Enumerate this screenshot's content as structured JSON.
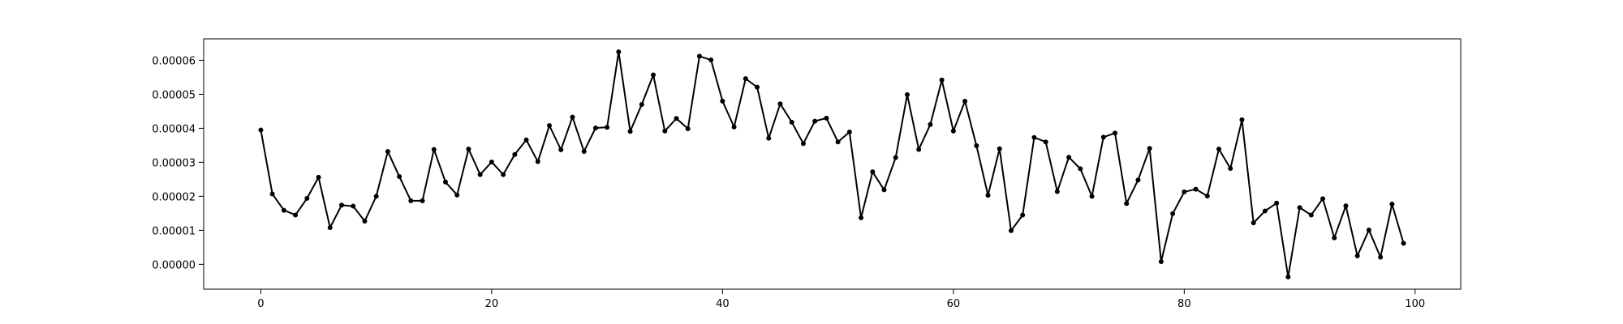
{
  "chart_data": {
    "type": "line",
    "title": "",
    "xlabel": "",
    "ylabel": "",
    "xlim": [
      -4.95,
      103.95
    ],
    "ylim": [
      -7.3e-06,
      6.63e-05
    ],
    "grid": false,
    "legend": "none",
    "x_ticks": [
      0,
      20,
      40,
      60,
      80,
      100
    ],
    "x_tick_labels": [
      "0",
      "20",
      "40",
      "60",
      "80",
      "100"
    ],
    "y_ticks": [
      0,
      1e-05,
      2e-05,
      3e-05,
      4e-05,
      5e-05,
      6e-05
    ],
    "y_tick_labels": [
      "0.00000",
      "0.00001",
      "0.00002",
      "0.00003",
      "0.00004",
      "0.00005",
      "0.00006"
    ],
    "series": [
      {
        "color": "#000000",
        "marker": "circle",
        "x": [
          0,
          1,
          2,
          3,
          4,
          5,
          6,
          7,
          8,
          9,
          10,
          11,
          12,
          13,
          14,
          15,
          16,
          17,
          18,
          19,
          20,
          21,
          22,
          23,
          24,
          25,
          26,
          27,
          28,
          29,
          30,
          31,
          32,
          33,
          34,
          35,
          36,
          37,
          38,
          39,
          40,
          41,
          42,
          43,
          44,
          45,
          46,
          47,
          48,
          49,
          50,
          51,
          52,
          53,
          54,
          55,
          56,
          57,
          58,
          59,
          60,
          61,
          62,
          63,
          64,
          65,
          66,
          67,
          68,
          69,
          70,
          71,
          72,
          73,
          74,
          75,
          76,
          77,
          78,
          79,
          80,
          81,
          82,
          83,
          84,
          85,
          86,
          87,
          88,
          89,
          90,
          91,
          92,
          93,
          94,
          95,
          96,
          97,
          98,
          99
        ],
        "values": [
          3.95e-05,
          2.07e-05,
          1.59e-05,
          1.45e-05,
          1.94e-05,
          2.56e-05,
          1.08e-05,
          1.74e-05,
          1.71e-05,
          1.27e-05,
          2e-05,
          3.32e-05,
          2.58e-05,
          1.87e-05,
          1.87e-05,
          3.38e-05,
          2.42e-05,
          2.04e-05,
          3.39e-05,
          2.64e-05,
          3.01e-05,
          2.64e-05,
          3.23e-05,
          3.66e-05,
          3.02e-05,
          4.08e-05,
          3.37e-05,
          4.33e-05,
          3.32e-05,
          4.01e-05,
          4.03e-05,
          6.25e-05,
          3.91e-05,
          4.7e-05,
          5.57e-05,
          3.92e-05,
          4.29e-05,
          3.99e-05,
          6.12e-05,
          6.01e-05,
          4.8e-05,
          4.04e-05,
          5.46e-05,
          5.21e-05,
          3.71e-05,
          4.72e-05,
          4.18e-05,
          3.55e-05,
          4.21e-05,
          4.3e-05,
          3.6e-05,
          3.89e-05,
          1.37e-05,
          2.72e-05,
          2.19e-05,
          3.14e-05,
          4.99e-05,
          3.38e-05,
          4.11e-05,
          5.42e-05,
          3.92e-05,
          4.8e-05,
          3.49e-05,
          2.03e-05,
          3.4e-05,
          9.9e-06,
          1.45e-05,
          3.73e-05,
          3.6e-05,
          2.14e-05,
          3.15e-05,
          2.81e-05,
          2e-05,
          3.74e-05,
          3.86e-05,
          1.79e-05,
          2.48e-05,
          3.41e-05,
          8e-07,
          1.49e-05,
          2.13e-05,
          2.21e-05,
          2.01e-05,
          3.39e-05,
          2.82e-05,
          4.25e-05,
          1.22e-05,
          1.57e-05,
          1.8e-05,
          -3.7e-06,
          1.67e-05,
          1.45e-05,
          1.93e-05,
          7.8e-06,
          1.72e-05,
          2.5e-06,
          1.01e-05,
          2.1e-06,
          1.77e-05,
          6.2e-06
        ]
      }
    ]
  }
}
